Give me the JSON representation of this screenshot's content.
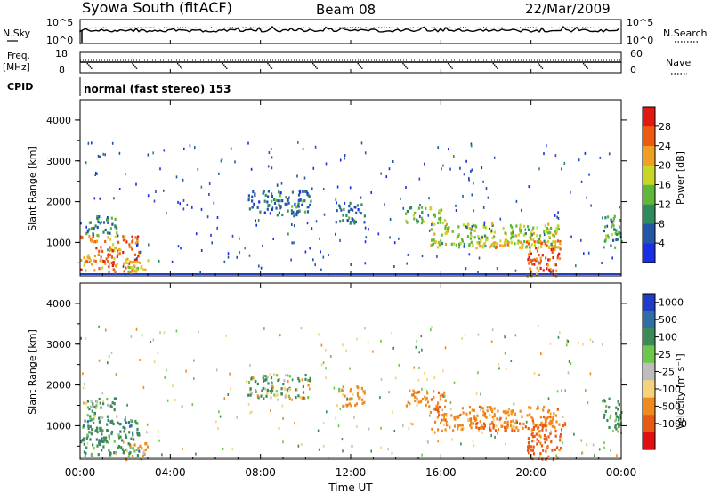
{
  "header": {
    "station": "Syowa South (fitACF)",
    "beam": "Beam 08",
    "date": "22/Mar/2009"
  },
  "top_panels": {
    "nsky_label": "N.Sky",
    "nsky_ticks": [
      "10^5",
      "10^0"
    ],
    "nsearch_label": "N.Search",
    "nsearch_ticks": [
      "10^5",
      "10^0"
    ],
    "freq_label_1": "Freq.",
    "freq_label_2": "[MHz]",
    "freq_ticks": [
      "18",
      "8"
    ],
    "nave_label": "Nave",
    "nave_ticks": [
      "60",
      "0"
    ],
    "cpid_label": "CPID",
    "cpid_value": "normal (fast stereo) 153"
  },
  "time_ticks": [
    "00:00",
    "04:00",
    "08:00",
    "12:00",
    "16:00",
    "20:00",
    "00:00"
  ],
  "xlabel": "Time UT",
  "colors": {
    "power_scale": [
      "#1a2ee6",
      "#2456a8",
      "#2f8a5c",
      "#5fb83a",
      "#c8d628",
      "#f0a020",
      "#ee5a12",
      "#e01a10"
    ],
    "velocity_scale": [
      "#1f3bc8",
      "#2f6fa6",
      "#3c8a58",
      "#6cc84a",
      "#bdbdbd",
      "#f5d37a",
      "#f08a20",
      "#e85a14",
      "#e01010"
    ]
  },
  "chart_data": [
    {
      "type": "heatmap",
      "name": "power",
      "ylabel": "Slant Range [km]",
      "xlabel": "Time UT",
      "x_range_hours": [
        0,
        24
      ],
      "ylim": [
        180,
        4500
      ],
      "y_ticks": [
        "1000",
        "2000",
        "3000",
        "4000"
      ],
      "colorbar_label": "Power [dB]",
      "colorbar_ticks": [
        "4",
        "8",
        "12",
        "16",
        "20",
        "24",
        "28"
      ],
      "colorbar_range": [
        0,
        30
      ],
      "regions": [
        {
          "t0": 0.0,
          "t1": 2.6,
          "r0": 300,
          "r1": 1200,
          "level": 22
        },
        {
          "t0": 0.2,
          "t1": 1.6,
          "r0": 1200,
          "r1": 1700,
          "level": 9
        },
        {
          "t0": 2.0,
          "t1": 3.0,
          "r0": 200,
          "r1": 600,
          "level": 18
        },
        {
          "t0": 7.4,
          "t1": 10.2,
          "r0": 1700,
          "r1": 2300,
          "level": 7
        },
        {
          "t0": 11.3,
          "t1": 12.6,
          "r0": 1500,
          "r1": 2000,
          "level": 7
        },
        {
          "t0": 14.4,
          "t1": 16.2,
          "r0": 1500,
          "r1": 1900,
          "level": 13
        },
        {
          "t0": 15.5,
          "t1": 21.2,
          "r0": 900,
          "r1": 1500,
          "level": 15
        },
        {
          "t0": 17.5,
          "t1": 21.5,
          "r0": 900,
          "r1": 1100,
          "level": 21
        },
        {
          "t0": 19.8,
          "t1": 21.3,
          "r0": 200,
          "r1": 900,
          "level": 25
        },
        {
          "t0": 23.2,
          "t1": 24.0,
          "r0": 900,
          "r1": 1700,
          "level": 11
        }
      ]
    },
    {
      "type": "heatmap",
      "name": "velocity",
      "ylabel": "Slant Range [km]",
      "xlabel": "Time UT",
      "x_range_hours": [
        0,
        24
      ],
      "ylim": [
        180,
        4500
      ],
      "y_ticks": [
        "1000",
        "2000",
        "3000",
        "4000"
      ],
      "colorbar_label": "Velocity [m s⁻¹]",
      "colorbar_ticks": [
        "1000",
        "500",
        "100",
        "25",
        "-25",
        "-100",
        "-500",
        "-1000"
      ],
      "colorbar_range": [
        -1200,
        1200
      ],
      "regions": [
        {
          "t0": 0.0,
          "t1": 2.6,
          "r0": 300,
          "r1": 1200,
          "level": 300
        },
        {
          "t0": 0.2,
          "t1": 1.6,
          "r0": 1200,
          "r1": 1700,
          "level": 200
        },
        {
          "t0": 2.0,
          "t1": 3.0,
          "r0": 200,
          "r1": 600,
          "level": -150
        },
        {
          "t0": 7.4,
          "t1": 10.2,
          "r0": 1700,
          "r1": 2300,
          "level": 80
        },
        {
          "t0": 11.3,
          "t1": 12.6,
          "r0": 1500,
          "r1": 2000,
          "level": -200
        },
        {
          "t0": 14.4,
          "t1": 16.2,
          "r0": 1500,
          "r1": 1900,
          "level": -300
        },
        {
          "t0": 15.5,
          "t1": 21.2,
          "r0": 900,
          "r1": 1500,
          "level": -320
        },
        {
          "t0": 17.5,
          "t1": 21.5,
          "r0": 900,
          "r1": 1100,
          "level": -600
        },
        {
          "t0": 19.8,
          "t1": 21.3,
          "r0": 200,
          "r1": 900,
          "level": -700
        },
        {
          "t0": 23.2,
          "t1": 24.0,
          "r0": 900,
          "r1": 1700,
          "level": 250
        }
      ]
    }
  ]
}
